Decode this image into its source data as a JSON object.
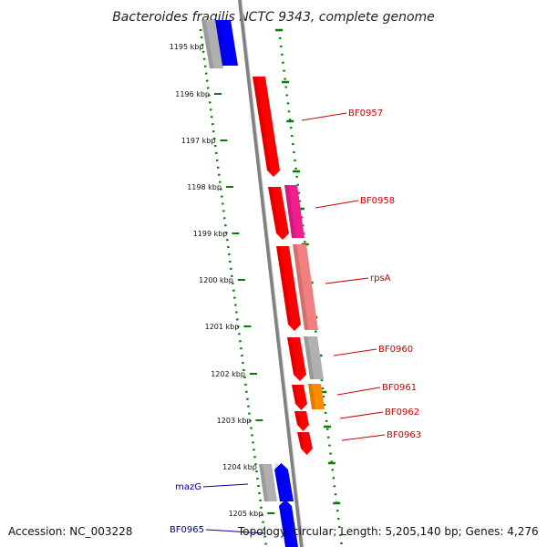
{
  "title": "Bacteroides fragilis NCTC 9343, complete genome",
  "accession": "Accession: NC_003228",
  "topology": "Topology: circular; Length: 5,205,140 bp; Genes: 4,276",
  "colors": {
    "red": "#ff0000",
    "pink": "#ee1e8f",
    "salmon": "#f08080",
    "gray": "#b0b0b0",
    "orange": "#ff8c00",
    "blue": "#0000ff",
    "backbone": "#808080",
    "ruler": "#008000",
    "label_red": "#cc0000",
    "label_blue": "#000099"
  },
  "ticks": [
    "1195 kbp",
    "1196 kbp",
    "1197 kbp",
    "1198 kbp",
    "1199 kbp",
    "1200 kbp",
    "1201 kbp",
    "1202 kbp",
    "1203 kbp",
    "1204 kbp",
    "1205 kbp"
  ],
  "gene_labels": [
    {
      "text": "BF0957",
      "color": "red"
    },
    {
      "text": "BF0958",
      "color": "red"
    },
    {
      "text": "rpsA",
      "color": "red"
    },
    {
      "text": "BF0960",
      "color": "red"
    },
    {
      "text": "BF0961",
      "color": "red"
    },
    {
      "text": "BF0962",
      "color": "red"
    },
    {
      "text": "BF0963",
      "color": "red"
    },
    {
      "text": "mazG",
      "color": "blue"
    },
    {
      "text": "BF0965",
      "color": "blue"
    }
  ]
}
